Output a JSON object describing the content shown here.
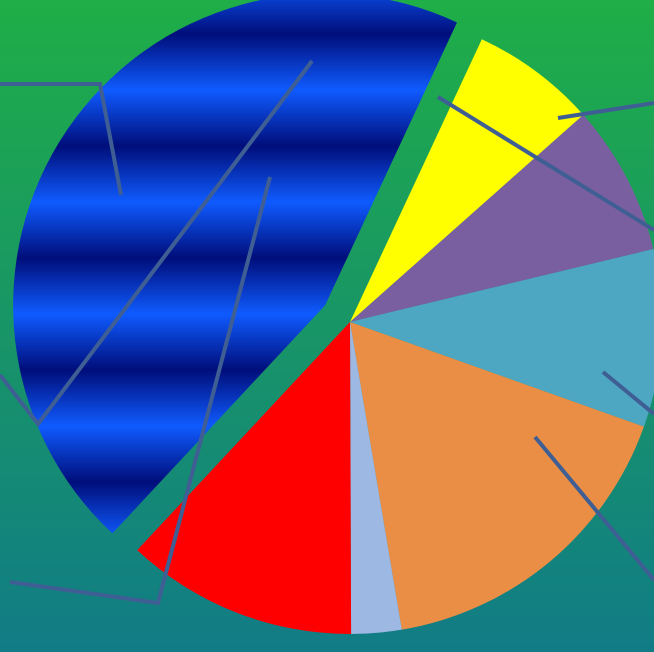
{
  "background": {
    "top_color": "#1FAE47",
    "bottom_color": "#117C86"
  },
  "leader_line_color": "#3F5F94",
  "chart_data": {
    "type": "pie",
    "title": "",
    "start_angle_deg": 223,
    "direction": "clockwise",
    "exploded_slice": "blue",
    "slices": [
      {
        "value": 45.0,
        "color": "#0033CC",
        "style": "banded-gradient",
        "gradient_colors": [
          "#000E7A",
          "#0F5BFF"
        ],
        "exploded": true
      },
      {
        "value": 6.5,
        "color": "#FFFF00"
      },
      {
        "value": 7.8,
        "color": "#7A5FA0"
      },
      {
        "value": 9.2,
        "color": "#4DA7C3"
      },
      {
        "value": 16.9,
        "color": "#EB8E45"
      },
      {
        "value": 2.6,
        "color": "#9DB8E3"
      },
      {
        "value": 12.0,
        "color": "#FF0000"
      }
    ]
  }
}
